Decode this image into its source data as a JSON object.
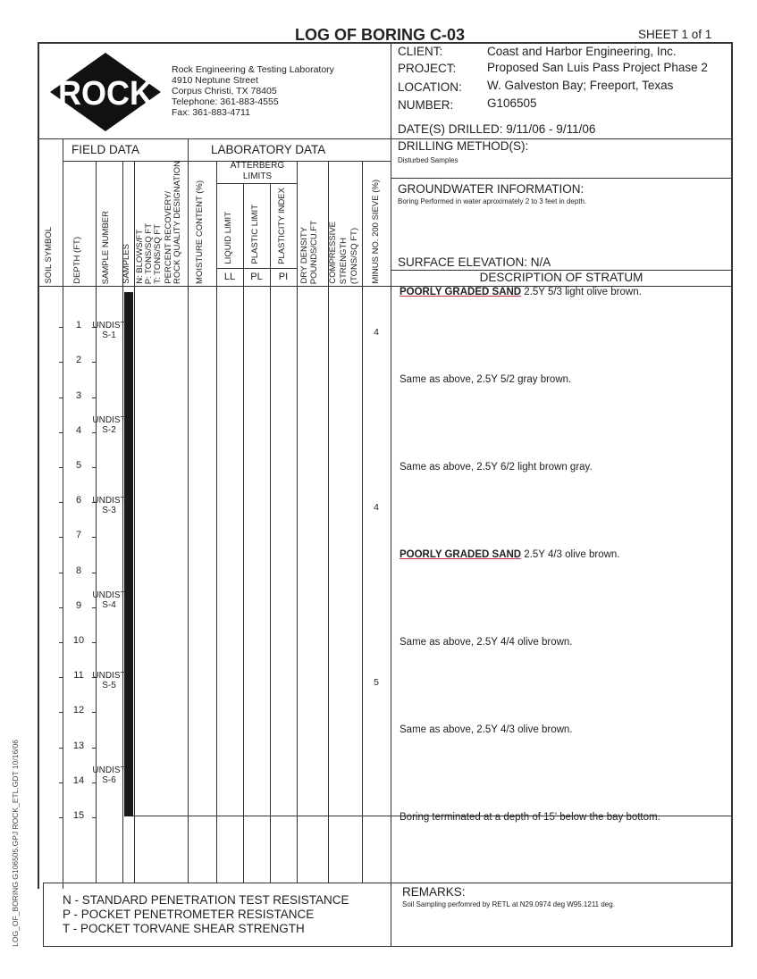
{
  "title": "LOG OF BORING C-03",
  "sheet": "SHEET  1  of  1",
  "company": {
    "logo_text": "ROCK",
    "name": "Rock Engineering & Testing Laboratory",
    "address": "4910 Neptune Street",
    "city": "Corpus Christi, TX 78405",
    "telephone": "Telephone:  361-883-4555",
    "fax": "Fax:  361-883-4711"
  },
  "info": {
    "client_label": "CLIENT:",
    "client": "Coast and Harbor Engineering, Inc.",
    "project_label": "PROJECT:",
    "project": "Proposed San Luis Pass Project Phase 2",
    "location_label": "LOCATION:",
    "location": "W. Galveston Bay; Freeport, Texas",
    "number_label": "NUMBER:",
    "number": "G106505",
    "dates": "DATE(S) DRILLED:   9/11/06 - 9/11/06",
    "drilling_label": "DRILLING METHOD(S):",
    "drilling": "Disturbed Samples",
    "groundwater_label": "GROUNDWATER INFORMATION:",
    "groundwater": "Boring Performed in water aproximately 2 to 3 feet in depth.",
    "elevation": "SURFACE ELEVATION:  N/A",
    "description_header": "DESCRIPTION OF STRATUM"
  },
  "headers": {
    "field": "FIELD DATA",
    "lab": "LABORATORY DATA",
    "atterberg": "ATTERBERG LIMITS",
    "soil_symbol": "SOIL SYMBOL",
    "depth": "DEPTH (FT)",
    "sample_number": "SAMPLE NUMBER",
    "samples": "SAMPLES",
    "n1": "N: BLOWS/FT",
    "n2": "P: TONS/SQ FT",
    "n3": "T: TONS/SQ FT",
    "n4": "PERCENT RECOVERY/",
    "n5": "ROCK QUALITY DESIGNATION",
    "moisture": "MOISTURE CONTENT (%)",
    "ll": "LIQUID LIMIT",
    "pl": "PLASTIC LIMIT",
    "pi": "PLASTICITY INDEX",
    "ll_abbr": "LL",
    "pl_abbr": "PL",
    "pi_abbr": "PI",
    "dry1": "DRY DENSITY",
    "dry2": "POUNDS/CU.FT",
    "comp1": "COMPRESSIVE",
    "comp2": "STRENGTH",
    "comp3": "(TONS/SQ FT)",
    "minus200": "MINUS NO. 200 SIEVE (%)"
  },
  "depths": [
    "1",
    "2",
    "3",
    "4",
    "5",
    "6",
    "7",
    "8",
    "9",
    "10",
    "11",
    "12",
    "13",
    "14",
    "15"
  ],
  "samples": [
    {
      "type": "UNDIST",
      "id": "S-1",
      "depth": 1
    },
    {
      "type": "UNDIST",
      "id": "S-2",
      "depth": 3.7
    },
    {
      "type": "UNDIST",
      "id": "S-3",
      "depth": 6
    },
    {
      "type": "UNDIST",
      "id": "S-4",
      "depth": 8.7
    },
    {
      "type": "UNDIST",
      "id": "S-5",
      "depth": 11
    },
    {
      "type": "UNDIST",
      "id": "S-6",
      "depth": 13.7
    }
  ],
  "minus200": [
    {
      "value": "4",
      "depth": 1.15
    },
    {
      "value": "4",
      "depth": 6.15
    },
    {
      "value": "5",
      "depth": 11.15
    }
  ],
  "descriptions": [
    {
      "bold": "POORLY GRADED SAND",
      "text": " 2.5Y 5/3 light olive brown.",
      "depth": 0
    },
    {
      "bold": "",
      "text": "Same as above, 2.5Y 5/2 gray brown.",
      "depth": 2.5
    },
    {
      "bold": "",
      "text": "Same as above, 2.5Y 6/2 light brown gray.",
      "depth": 5
    },
    {
      "bold": "POORLY GRADED SAND",
      "text": "  2.5Y 4/3 olive brown.",
      "depth": 7.5
    },
    {
      "bold": "",
      "text": "Same as above, 2.5Y 4/4 olive brown.",
      "depth": 10
    },
    {
      "bold": "",
      "text": "Same as above, 2.5Y 4/3 olive brown.",
      "depth": 12.5
    },
    {
      "bold": "",
      "text": "Boring terminated at a depth of 15' below the bay bottom.",
      "depth": 15
    }
  ],
  "legend": [
    "N - STANDARD PENETRATION TEST RESISTANCE",
    "P - POCKET PENETROMETER RESISTANCE",
    "T - POCKET TORVANE SHEAR STRENGTH"
  ],
  "remarks_label": "REMARKS:",
  "remarks": "Soil Sampling perfomred by RETL at N29.0974 deg  W95.1211 deg.",
  "footer_file": "LOG_OF_BORING G106505.GPJ ROCK_ETL.GDT 10/16/06"
}
